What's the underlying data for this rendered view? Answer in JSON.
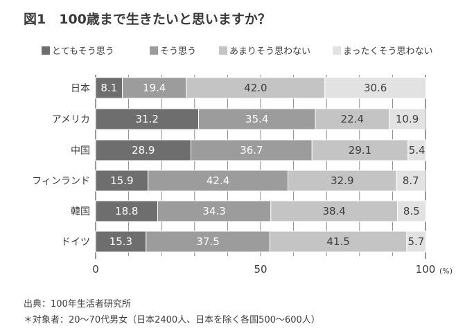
{
  "chart_data": {
    "type": "bar",
    "orientation": "horizontal",
    "stacked": true,
    "title": "図1　100歳まで生きたいと思いますか？",
    "categories": [
      "日本",
      "アメリカ",
      "中国",
      "フィンランド",
      "韓国",
      "ドイツ"
    ],
    "series": [
      {
        "name": "とてもそう思う",
        "color": "#6e6e6e",
        "values": [
          8.1,
          31.2,
          28.9,
          15.9,
          18.8,
          15.3
        ],
        "labels": [
          "8.1",
          "31.2",
          "28.9",
          "15.9",
          "18.8",
          "15.3"
        ]
      },
      {
        "name": "そう思う",
        "color": "#9c9c9c",
        "values": [
          19.4,
          35.4,
          36.7,
          42.4,
          34.3,
          37.5
        ],
        "labels": [
          "19.4",
          "35.4",
          "36.7",
          "42.4",
          "34.3",
          "37.5"
        ]
      },
      {
        "name": "あまりそう思わない",
        "color": "#c4c4c4",
        "values": [
          42.0,
          22.4,
          29.1,
          32.9,
          38.4,
          41.5
        ],
        "labels": [
          "42.0",
          "22.4",
          "29.1",
          "32.9",
          "38.4",
          "41.5"
        ]
      },
      {
        "name": "まったくそう思わない",
        "color": "#e2e2e2",
        "values": [
          30.6,
          10.9,
          5.4,
          8.7,
          8.5,
          5.7
        ],
        "labels": [
          "30.6",
          "10.9",
          "5.4",
          "8.7",
          "8.5",
          "5.7"
        ]
      }
    ],
    "xlim": [
      0,
      100
    ],
    "xticks": [
      0,
      50,
      100
    ],
    "xtick_labels": [
      "0",
      "50",
      "100"
    ],
    "x_unit": "(%)",
    "grid": true,
    "legend_position": "top",
    "source": "出典：100年生活者研究所",
    "note": "＊対象者：20～70代男女（日本2400人、日本を除く各国500～600人）"
  }
}
